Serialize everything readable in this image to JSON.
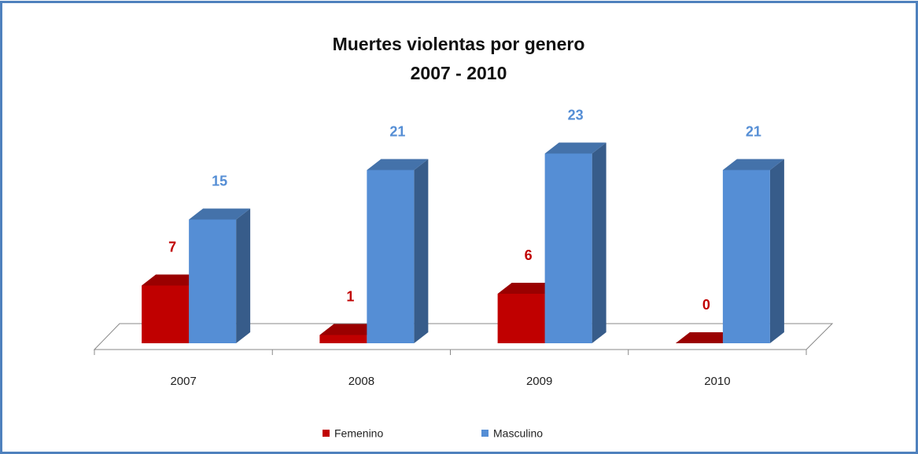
{
  "chart_data": {
    "type": "bar3d",
    "title": "Muertes violentas por genero",
    "subtitle": "2007 - 2010",
    "categories": [
      "2007",
      "2008",
      "2009",
      "2010"
    ],
    "series": [
      {
        "name": "Femenino",
        "color": "#c00000",
        "values": [
          7,
          1,
          6,
          0
        ]
      },
      {
        "name": "Masculino",
        "color": "#558ed5",
        "values": [
          15,
          21,
          23,
          21
        ]
      }
    ],
    "legend": "bottom"
  }
}
